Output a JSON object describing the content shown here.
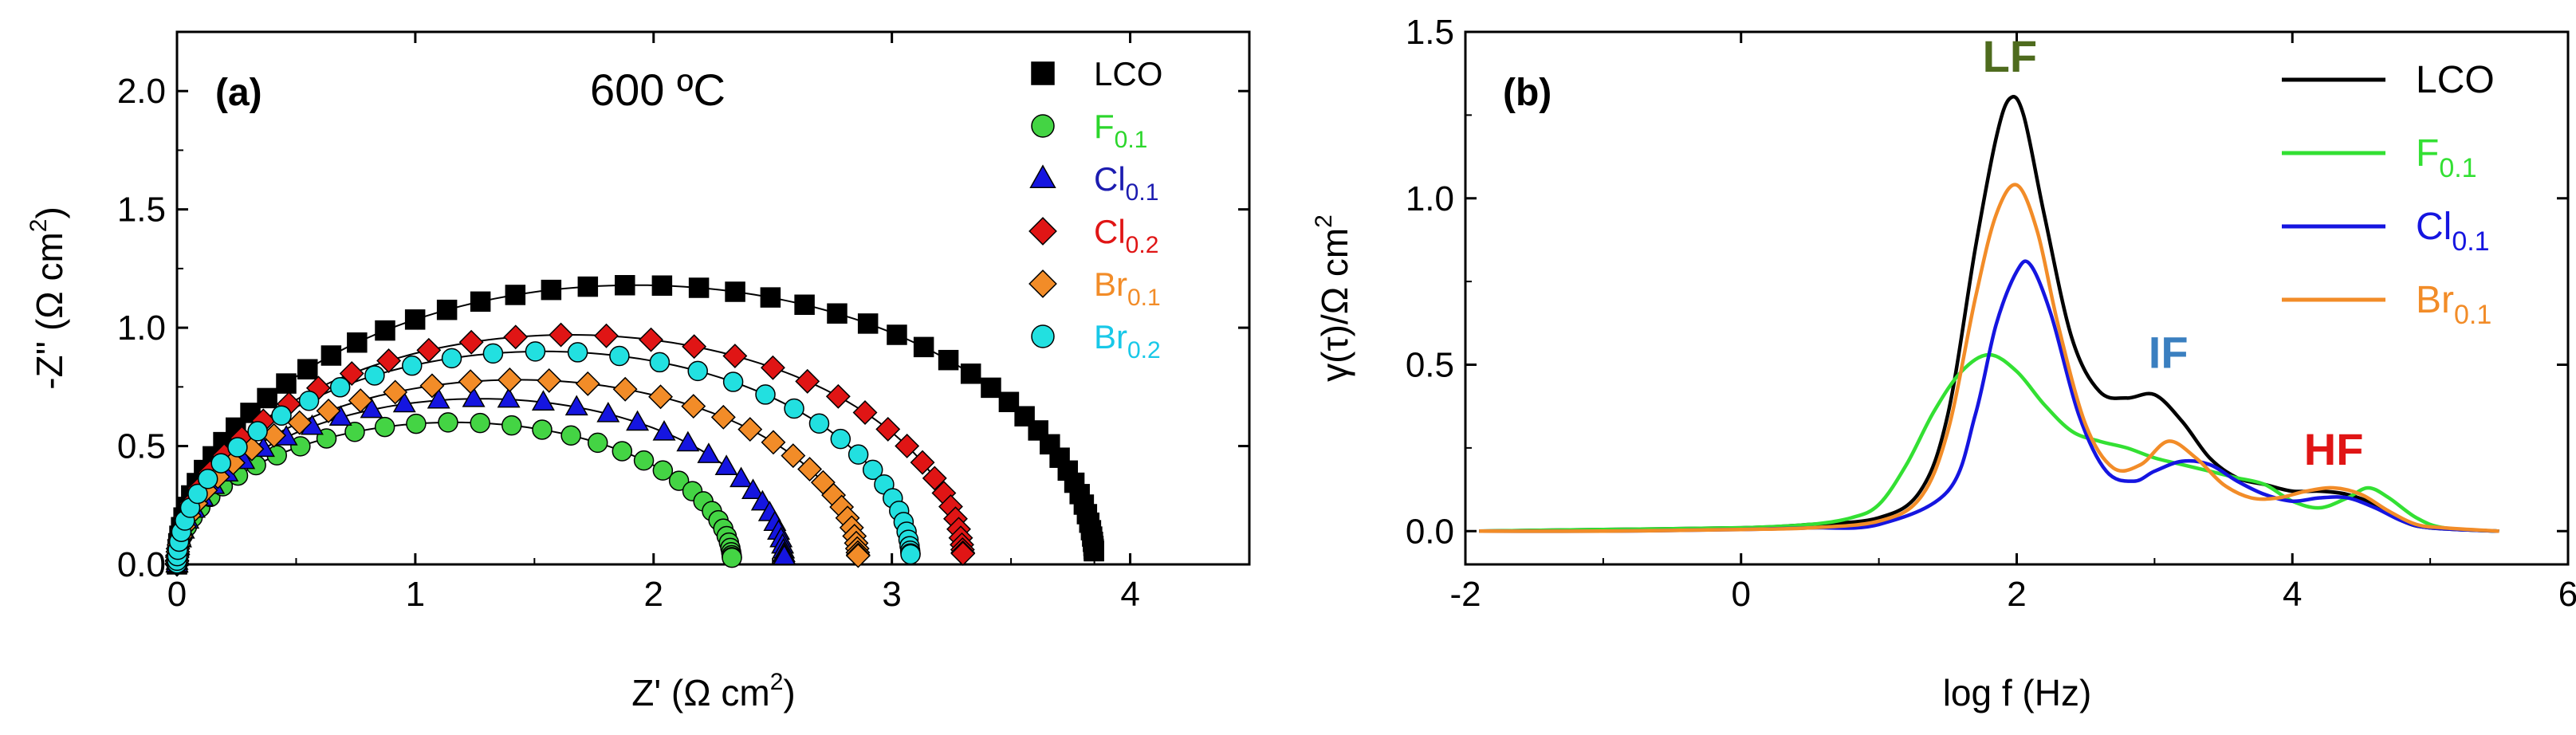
{
  "chart_data": [
    {
      "panel": "(a)",
      "type": "scatter",
      "title": "600 ºC",
      "xlabel_main": "Z' (Ω cm",
      "xlabel_sup": "2",
      "xlabel_end": ")",
      "ylabel_main": "-Z'' (Ω cm",
      "ylabel_sup": "2",
      "ylabel_end": ")",
      "xlim": [
        0,
        4.5
      ],
      "ylim": [
        0,
        2.25
      ],
      "xticks": [
        0,
        1,
        2,
        3,
        4
      ],
      "xtick_labels": [
        "0",
        "1",
        "2",
        "3",
        "4"
      ],
      "yticks": [
        0,
        0.5,
        1.0,
        1.5,
        2.0
      ],
      "ytick_labels": [
        "0.0",
        "0.5",
        "1.0",
        "1.5",
        "2.0"
      ],
      "legend_position": "top-right",
      "series": [
        {
          "name": "LCO",
          "base": "LCO",
          "sub": "",
          "marker": "square",
          "color": "#000000",
          "text_color": "#000000",
          "r0": 0.0,
          "r1": 3.85,
          "peak": 1.18,
          "fit_color": "#000000"
        },
        {
          "name": "F0.1",
          "base": "F",
          "sub": "0.1",
          "marker": "circle",
          "color": "#44d444",
          "text_color": "#2bd62b",
          "r0": 0.0,
          "r1": 2.33,
          "peak": 0.6,
          "fit_color": "#000000"
        },
        {
          "name": "Cl0.1",
          "base": "Cl",
          "sub": "0.1",
          "marker": "triangle",
          "color": "#1515e0",
          "text_color": "#1c1cb0",
          "r0": 0.0,
          "r1": 2.55,
          "peak": 0.7,
          "fit_color": "#000000"
        },
        {
          "name": "Cl0.2",
          "base": "Cl",
          "sub": "0.2",
          "marker": "diamond",
          "color": "#e01515",
          "text_color": "#e01515",
          "r0": 0.0,
          "r1": 3.3,
          "peak": 0.97,
          "fit_color": "#000000"
        },
        {
          "name": "Br0.1",
          "base": "Br",
          "sub": "0.1",
          "marker": "diamond",
          "color": "#f28c28",
          "text_color": "#f28c28",
          "r0": 0.0,
          "r1": 2.86,
          "peak": 0.78,
          "fit_color": "#000000"
        },
        {
          "name": "Br0.2",
          "base": "Br",
          "sub": "0.2",
          "marker": "circle",
          "color": "#22e0e0",
          "text_color": "#18c8e8",
          "r0": 0.0,
          "r1": 3.08,
          "peak": 0.9,
          "fit_color": "#000000"
        }
      ]
    },
    {
      "panel": "(b)",
      "type": "line",
      "xlabel": "log f (Hz)",
      "ylabel_main": "γ(τ)/Ω cm",
      "ylabel_sup": "2",
      "xlim": [
        -2,
        6
      ],
      "ylim": [
        -0.1,
        1.5
      ],
      "xticks": [
        -2,
        0,
        2,
        4,
        6
      ],
      "xtick_labels": [
        "-2",
        "0",
        "2",
        "4",
        "6"
      ],
      "yticks": [
        0,
        0.5,
        1.0,
        1.5
      ],
      "ytick_labels": [
        "0.0",
        "0.5",
        "1.0",
        "1.5"
      ],
      "legend_position": "top-right",
      "annotations": [
        {
          "text": "LF",
          "x": 1.95,
          "y": 1.38,
          "color": "#4e6b1e"
        },
        {
          "text": "IF",
          "x": 3.1,
          "y": 0.49,
          "color": "#3a7fc0"
        },
        {
          "text": "HF",
          "x": 4.3,
          "y": 0.2,
          "color": "#e01515"
        }
      ],
      "series": [
        {
          "name": "LCO",
          "base": "LCO",
          "sub": "",
          "color": "#000000",
          "x": [
            -1.9,
            -1.0,
            0.0,
            0.5,
            1.0,
            1.3,
            1.5,
            1.7,
            1.85,
            1.95,
            2.05,
            2.2,
            2.4,
            2.6,
            2.8,
            3.0,
            3.2,
            3.4,
            3.6,
            3.8,
            4.0,
            4.2,
            4.4,
            4.6,
            4.8,
            5.0,
            5.5
          ],
          "y": [
            0.0,
            0.005,
            0.01,
            0.02,
            0.04,
            0.12,
            0.35,
            0.85,
            1.18,
            1.3,
            1.25,
            0.95,
            0.58,
            0.42,
            0.4,
            0.41,
            0.33,
            0.22,
            0.16,
            0.14,
            0.12,
            0.12,
            0.11,
            0.08,
            0.03,
            0.01,
            0.0
          ]
        },
        {
          "name": "F0.1",
          "base": "F",
          "sub": "0.1",
          "color": "#33e033",
          "x": [
            -1.9,
            -1.0,
            0.0,
            0.5,
            0.8,
            1.0,
            1.2,
            1.4,
            1.6,
            1.8,
            2.0,
            2.2,
            2.4,
            2.6,
            2.8,
            3.0,
            3.2,
            3.4,
            3.6,
            3.8,
            4.0,
            4.2,
            4.4,
            4.55,
            4.7,
            4.9,
            5.1,
            5.5
          ],
          "y": [
            0.0,
            0.005,
            0.01,
            0.02,
            0.04,
            0.08,
            0.2,
            0.36,
            0.48,
            0.53,
            0.48,
            0.38,
            0.3,
            0.27,
            0.25,
            0.22,
            0.2,
            0.18,
            0.16,
            0.14,
            0.09,
            0.07,
            0.1,
            0.13,
            0.1,
            0.04,
            0.01,
            0.0
          ]
        },
        {
          "name": "Cl0.1",
          "base": "Cl",
          "sub": "0.1",
          "color": "#1515e0",
          "x": [
            -1.9,
            -1.0,
            0.0,
            0.5,
            1.0,
            1.5,
            1.7,
            1.85,
            2.0,
            2.1,
            2.25,
            2.45,
            2.65,
            2.85,
            3.0,
            3.2,
            3.4,
            3.6,
            3.8,
            4.0,
            4.2,
            4.4,
            4.6,
            4.8,
            5.0,
            5.5
          ],
          "y": [
            0.0,
            0.0,
            0.005,
            0.01,
            0.02,
            0.12,
            0.35,
            0.62,
            0.78,
            0.8,
            0.65,
            0.35,
            0.18,
            0.15,
            0.18,
            0.21,
            0.2,
            0.15,
            0.11,
            0.09,
            0.1,
            0.1,
            0.07,
            0.03,
            0.01,
            0.0
          ]
        },
        {
          "name": "Br0.1",
          "base": "Br",
          "sub": "0.1",
          "color": "#f28c28",
          "x": [
            -1.9,
            -1.0,
            0.0,
            0.5,
            1.0,
            1.3,
            1.5,
            1.7,
            1.85,
            2.0,
            2.15,
            2.3,
            2.5,
            2.7,
            2.9,
            3.1,
            3.3,
            3.5,
            3.7,
            3.9,
            4.1,
            4.3,
            4.5,
            4.7,
            4.9,
            5.1,
            5.5
          ],
          "y": [
            0.0,
            0.0,
            0.005,
            0.01,
            0.03,
            0.1,
            0.3,
            0.7,
            0.95,
            1.04,
            0.9,
            0.62,
            0.32,
            0.19,
            0.2,
            0.27,
            0.22,
            0.14,
            0.1,
            0.1,
            0.12,
            0.13,
            0.11,
            0.06,
            0.02,
            0.01,
            0.0
          ]
        }
      ]
    }
  ]
}
